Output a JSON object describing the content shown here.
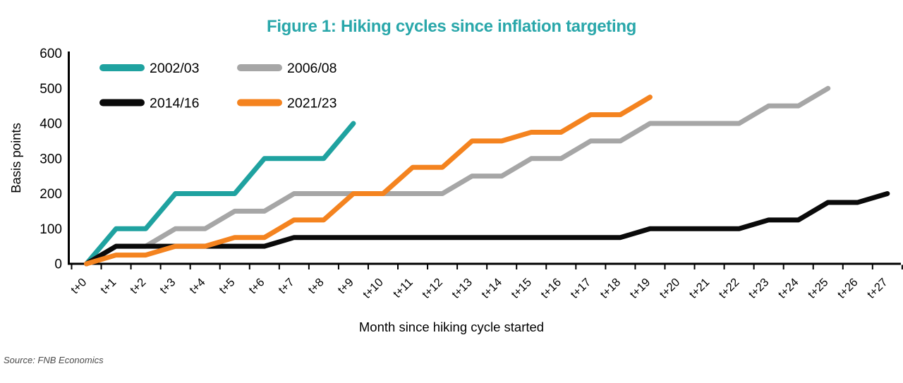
{
  "chart_data": {
    "type": "line",
    "title": "Figure 1: Hiking cycles since inflation targeting",
    "xlabel": "Month since hiking cycle started",
    "ylabel": "Basis points",
    "ylim": [
      0,
      600
    ],
    "yticks": [
      0,
      100,
      200,
      300,
      400,
      500,
      600
    ],
    "grid": false,
    "legend_position": "top-left-inside",
    "categories": [
      "t+0",
      "t+1",
      "t+2",
      "t+3",
      "t+4",
      "t+5",
      "t+6",
      "t+7",
      "t+8",
      "t+9",
      "t+10",
      "t+11",
      "t+12",
      "t+13",
      "t+14",
      "t+15",
      "t+16",
      "t+17",
      "t+18",
      "t+19",
      "t+20",
      "t+21",
      "t+22",
      "t+23",
      "t+24",
      "t+25",
      "t+26",
      "t+27"
    ],
    "series": [
      {
        "name": "2002/03",
        "color": "#1FA2A0",
        "values": [
          0,
          100,
          100,
          200,
          200,
          200,
          300,
          300,
          300,
          400
        ]
      },
      {
        "name": "2006/08",
        "color": "#A6A6A6",
        "values": [
          0,
          50,
          50,
          100,
          100,
          150,
          150,
          200,
          200,
          200,
          200,
          200,
          200,
          250,
          250,
          300,
          300,
          350,
          350,
          400,
          400,
          400,
          400,
          450,
          450,
          500
        ]
      },
      {
        "name": "2014/16",
        "color": "#0A0A0A",
        "values": [
          0,
          50,
          50,
          50,
          50,
          50,
          50,
          75,
          75,
          75,
          75,
          75,
          75,
          75,
          75,
          75,
          75,
          75,
          75,
          100,
          100,
          100,
          100,
          125,
          125,
          175,
          175,
          200
        ]
      },
      {
        "name": "2021/23",
        "color": "#F4831F",
        "values": [
          0,
          25,
          25,
          50,
          50,
          75,
          75,
          125,
          125,
          200,
          200,
          275,
          275,
          350,
          350,
          375,
          375,
          425,
          425,
          475
        ]
      }
    ],
    "title_color": "#29A7AA",
    "axis_color": "#000000"
  },
  "source": {
    "label": "Source: FNB Economics"
  }
}
